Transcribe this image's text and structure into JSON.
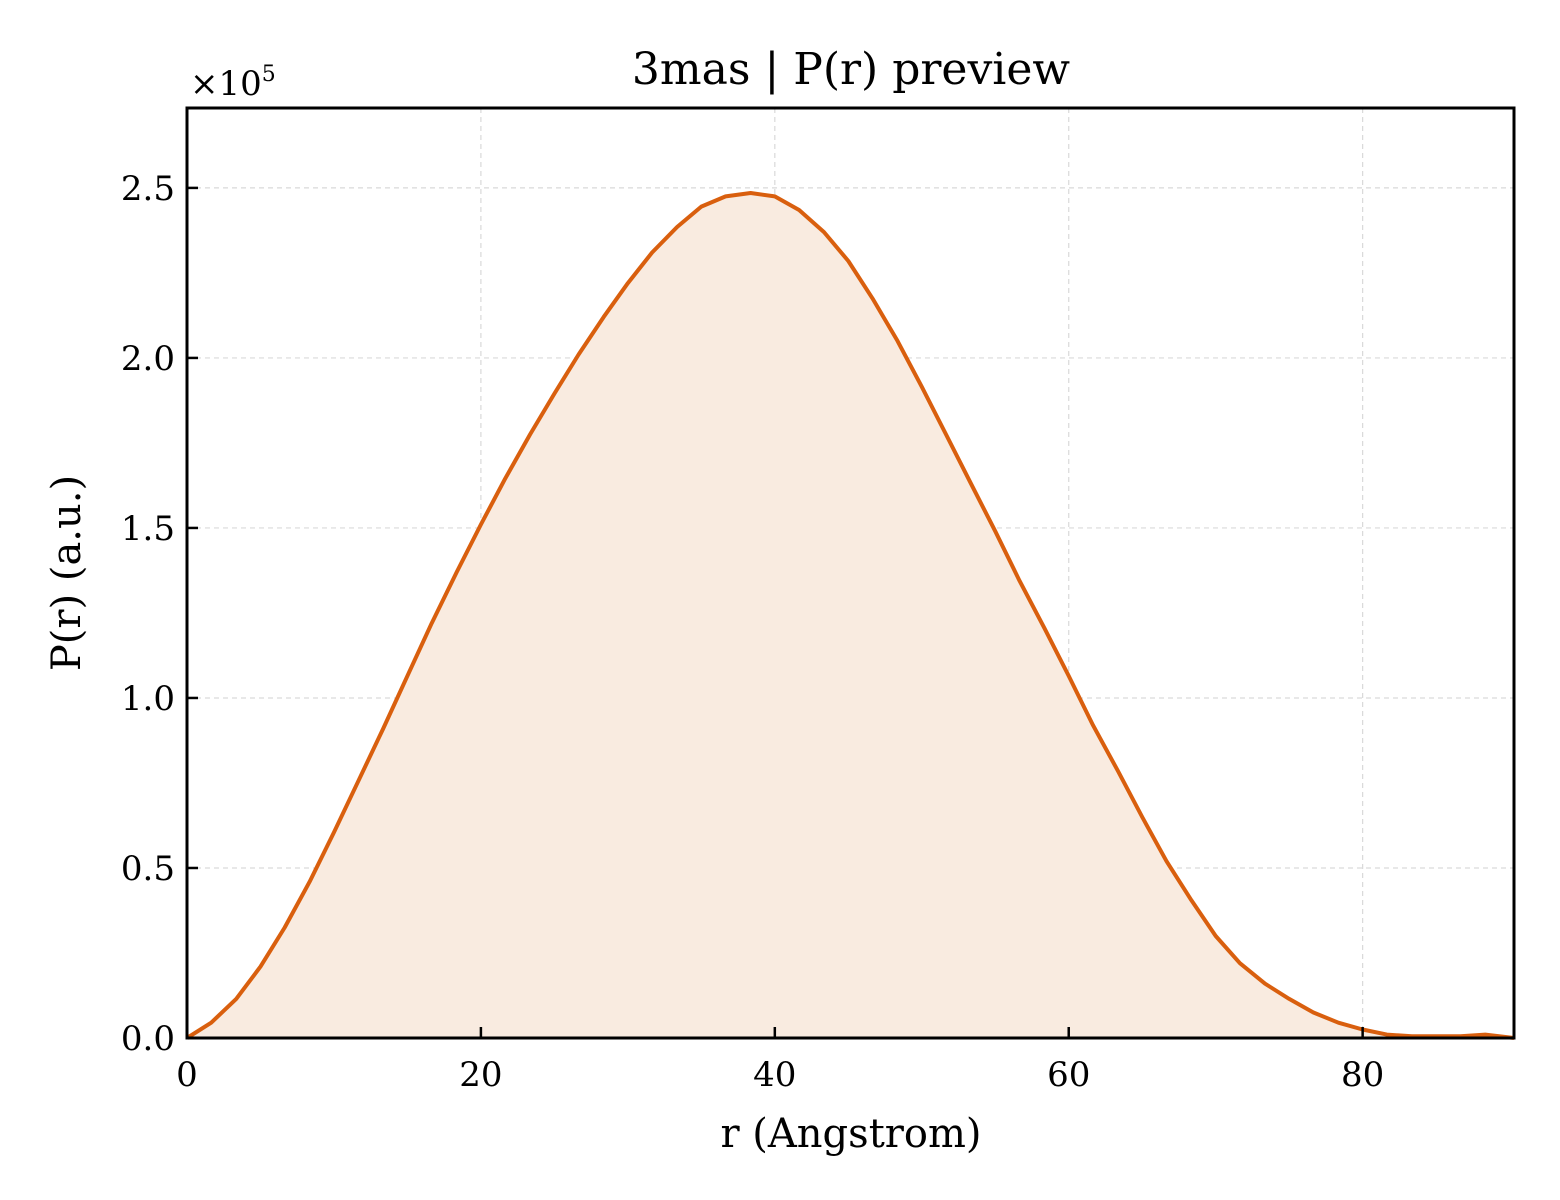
{
  "chart_data": {
    "type": "area",
    "title": "3mas | P(r) preview",
    "xlabel": "r (Angstrom)",
    "ylabel": "P(r) (a.u.)",
    "y_offset_text": {
      "base": "×10",
      "exponent": "5"
    },
    "xlim": [
      0,
      90.3
    ],
    "ylim": [
      0,
      2.735
    ],
    "y_scale_factor": 100000,
    "x_ticks": [
      0,
      20,
      40,
      60,
      80
    ],
    "x_tick_labels": [
      "0",
      "20",
      "40",
      "60",
      "80"
    ],
    "y_ticks": [
      0,
      0.5,
      1.0,
      1.5,
      2.0,
      2.5
    ],
    "y_tick_labels": [
      "0.0",
      "0.5",
      "1.0",
      "1.5",
      "2.0",
      "2.5"
    ],
    "grid": true,
    "line_color": "#d95f0e",
    "fill_color": "#f9ebe0",
    "series": [
      {
        "x": [
          0,
          1.65,
          3.35,
          5.0,
          6.65,
          8.35,
          10.0,
          11.65,
          13.35,
          15.0,
          16.65,
          18.35,
          20.0,
          21.65,
          23.35,
          25.0,
          26.65,
          28.35,
          30.0,
          31.65,
          33.35,
          35.0,
          36.65,
          38.35,
          40.0,
          41.65,
          43.35,
          45.0,
          46.65,
          48.35,
          50.0,
          51.65,
          53.35,
          55.0,
          56.65,
          58.35,
          60.0,
          61.65,
          63.35,
          65.0,
          66.65,
          68.35,
          70.0,
          71.65,
          73.35,
          75.0,
          76.65,
          78.35,
          80.0,
          81.65,
          83.35,
          85.0,
          86.65,
          88.35,
          90.3
        ],
        "y": [
          0.0,
          0.045,
          0.115,
          0.21,
          0.325,
          0.46,
          0.605,
          0.755,
          0.91,
          1.065,
          1.22,
          1.37,
          1.51,
          1.645,
          1.775,
          1.895,
          2.01,
          2.12,
          2.22,
          2.31,
          2.385,
          2.445,
          2.475,
          2.485,
          2.475,
          2.435,
          2.37,
          2.285,
          2.175,
          2.05,
          1.915,
          1.775,
          1.63,
          1.49,
          1.345,
          1.205,
          1.065,
          0.92,
          0.785,
          0.65,
          0.52,
          0.405,
          0.3,
          0.22,
          0.16,
          0.115,
          0.075,
          0.045,
          0.025,
          0.01,
          0.005,
          0.005,
          0.005,
          0.01,
          0.0
        ]
      }
    ]
  }
}
